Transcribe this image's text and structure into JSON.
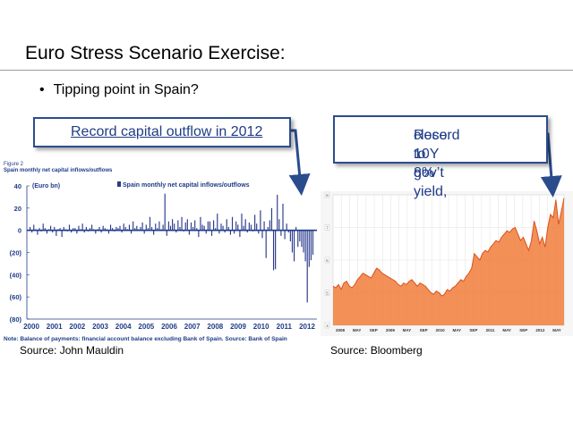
{
  "slide": {
    "title": "Euro Stress Scenario Exercise:",
    "bullet": "Tipping point in Spain?",
    "callout_left": "Record capital outflow in 2012",
    "callout_right_line1": "Record 10Y gov’t yield,",
    "callout_right_line2": "close to 8%",
    "source_left": "Source: John Mauldin",
    "source_right": "Source: Bloomberg"
  },
  "colors": {
    "callout_border": "#2b4c8c",
    "callout_text": "#1f3c88",
    "bar": "#2b3a8c",
    "area": "#f07d3a",
    "arrow": "#2b4c8c"
  },
  "chart_data": [
    {
      "type": "bar",
      "figure_label": "Figure 2",
      "title": "Spain monthly net capital inflows/outflows",
      "unit_label": "(Euro bn)",
      "legend": "Spain monthly net capital inflows/outflows",
      "note": "Note: Balance of payments: financial account balance excluding Bank of Spain. Source: Bank of Spain",
      "ylim": [
        -80,
        40
      ],
      "yticks": [
        "40",
        "20",
        "0",
        "(20)",
        "(40)",
        "(60)",
        "(80)"
      ],
      "xticks": [
        "2000",
        "2001",
        "2002",
        "2003",
        "2004",
        "2005",
        "2006",
        "2007",
        "2008",
        "2009",
        "2010",
        "2011",
        "2012"
      ],
      "values": [
        3,
        -2,
        5,
        1,
        -4,
        2,
        -1,
        6,
        2,
        -3,
        1,
        4,
        -2,
        3,
        -5,
        1,
        2,
        -6,
        3,
        1,
        -1,
        5,
        -2,
        2,
        2,
        -3,
        4,
        1,
        6,
        -2,
        3,
        -1,
        2,
        5,
        1,
        -3,
        1,
        3,
        -2,
        4,
        2,
        1,
        -3,
        5,
        2,
        -1,
        3,
        2,
        4,
        -2,
        6,
        3,
        1,
        5,
        -3,
        8,
        2,
        4,
        1,
        3,
        7,
        -3,
        5,
        2,
        12,
        3,
        -4,
        6,
        2,
        8,
        1,
        5,
        33,
        -5,
        8,
        4,
        10,
        6,
        -2,
        9,
        3,
        12,
        -1,
        7,
        10,
        -4,
        7,
        3,
        9,
        2,
        -6,
        12,
        5,
        4,
        -3,
        8,
        8,
        -5,
        9,
        2,
        15,
        -3,
        6,
        4,
        -2,
        10,
        3,
        -4,
        12,
        -3,
        8,
        5,
        -6,
        15,
        4,
        10,
        -2,
        7,
        5,
        -1,
        14,
        6,
        -3,
        18,
        -7,
        8,
        -25,
        3,
        9,
        20,
        -36,
        -35,
        32,
        10,
        -5,
        24,
        -8,
        6,
        -2,
        -10,
        -20,
        -28,
        3,
        -15,
        -10,
        -15,
        -20,
        -28,
        -65,
        -33,
        -27,
        -22
      ]
    },
    {
      "type": "area",
      "title": "",
      "xticks": [
        "2008",
        "MAY",
        "SEP",
        "2009",
        "MAY",
        "SEP",
        "2010",
        "MAY",
        "SEP",
        "2011",
        "MAY",
        "SEP",
        "2012",
        "MAY"
      ],
      "yticks": [
        "8",
        "7",
        "6",
        "5",
        "4"
      ],
      "ylim": [
        4,
        8
      ],
      "values": [
        5.2,
        5.15,
        5.25,
        5.1,
        5.3,
        5.35,
        5.2,
        5.15,
        5.25,
        5.4,
        5.5,
        5.6,
        5.55,
        5.5,
        5.45,
        5.6,
        5.75,
        5.7,
        5.6,
        5.55,
        5.5,
        5.45,
        5.4,
        5.35,
        5.25,
        5.2,
        5.3,
        5.25,
        5.35,
        5.4,
        5.3,
        5.2,
        5.3,
        5.25,
        5.2,
        5.1,
        5.0,
        4.95,
        5.05,
        5.0,
        4.9,
        4.95,
        5.1,
        5.05,
        5.15,
        5.2,
        5.3,
        5.4,
        5.35,
        5.5,
        5.6,
        5.75,
        6.2,
        6.1,
        6.0,
        6.2,
        6.3,
        6.25,
        6.4,
        6.5,
        6.6,
        6.55,
        6.7,
        6.8,
        6.9,
        6.85,
        6.95,
        7.0,
        6.8,
        6.6,
        6.7,
        6.5,
        6.3,
        6.6,
        7.2,
        6.9,
        6.5,
        6.7,
        6.4,
        7.0,
        7.4,
        7.3,
        7.85,
        7.1,
        7.5,
        7.9
      ]
    }
  ]
}
